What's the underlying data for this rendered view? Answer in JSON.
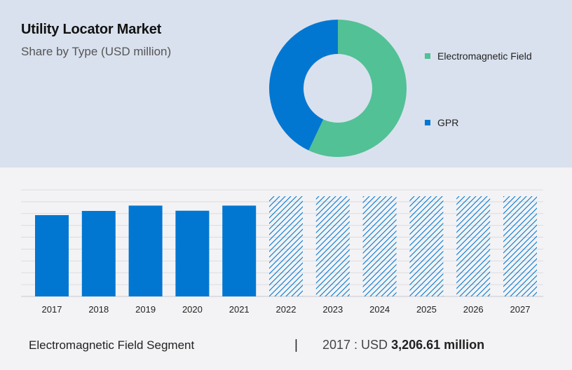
{
  "header": {
    "title": "Utility Locator Market",
    "subtitle": "Share by Type (USD million)"
  },
  "colors": {
    "electromagnetic": "#52c195",
    "gpr": "#0277d1",
    "bar": "#0277d1",
    "top_panel": "#d9e1ee"
  },
  "chart_data": [
    {
      "type": "pie",
      "donut": true,
      "title": "Share by Type (USD million)",
      "legend_position": "right",
      "slices": [
        {
          "name": "Electromagnetic Field",
          "value": 57,
          "color": "#52c195"
        },
        {
          "name": "GPR",
          "value": 43,
          "color": "#0277d1"
        }
      ]
    },
    {
      "type": "bar",
      "categories": [
        "2017",
        "2018",
        "2019",
        "2020",
        "2021",
        "2022",
        "2023",
        "2024",
        "2025",
        "2026",
        "2027"
      ],
      "values": [
        3206.61,
        3370,
        3580,
        3380,
        3580,
        null,
        null,
        null,
        null,
        null,
        null
      ],
      "forecast_categories": [
        "2022",
        "2023",
        "2024",
        "2025",
        "2026",
        "2027"
      ],
      "forecast_style": "hatched",
      "ylim": [
        0,
        4200
      ],
      "grid": true,
      "xlabel": "",
      "ylabel": ""
    }
  ],
  "footer": {
    "segment_label": "Electromagnetic Field Segment",
    "separator": "|",
    "year_prefix": "2017 : USD",
    "value": "3,206.61 million"
  }
}
